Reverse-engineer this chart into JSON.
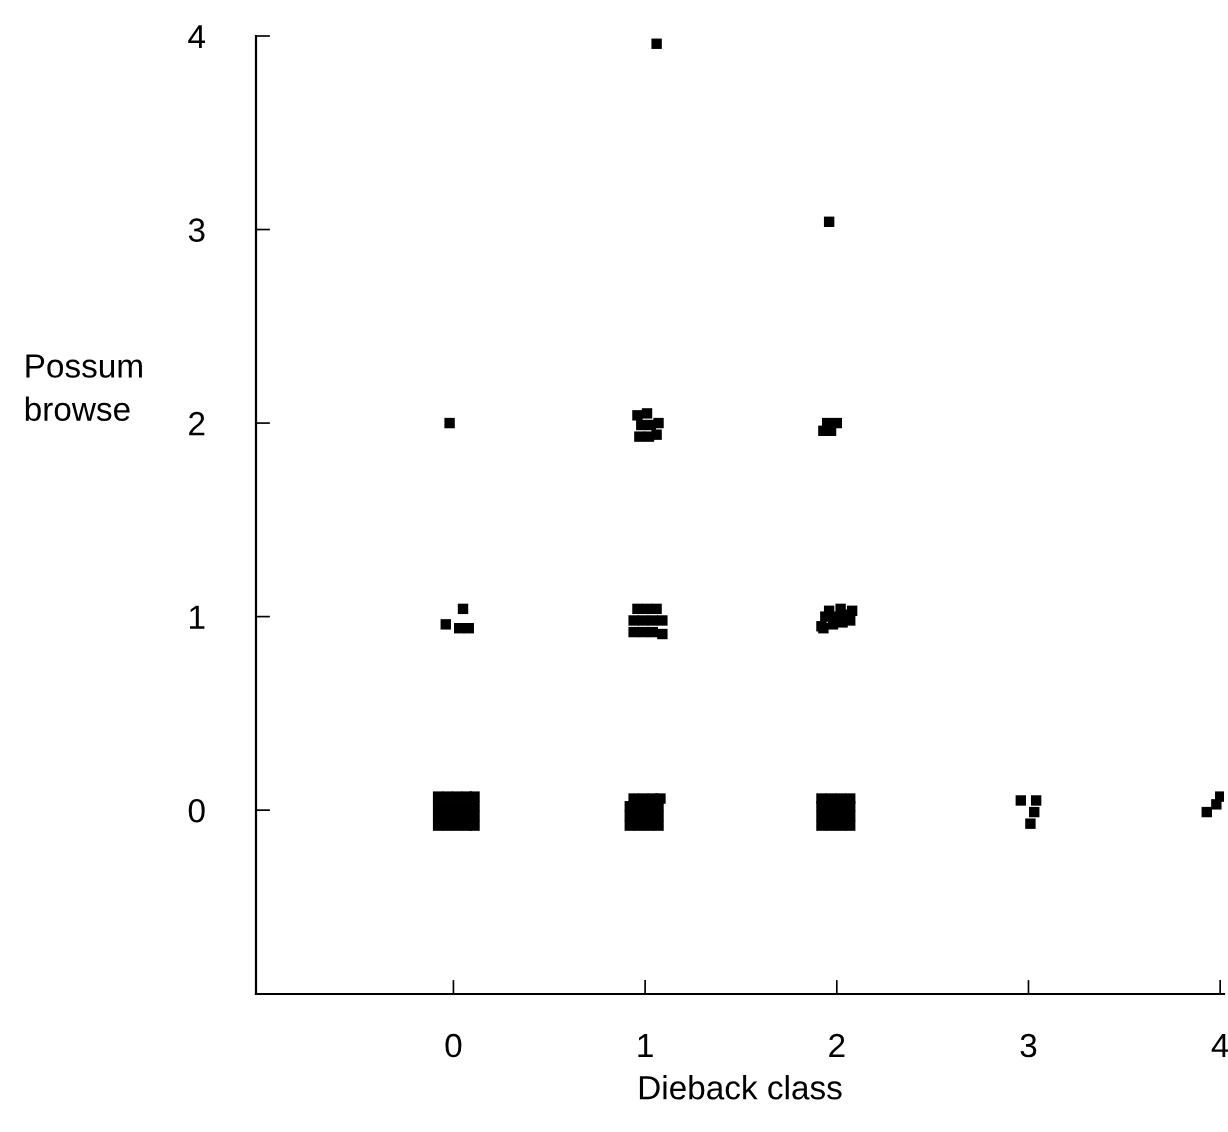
{
  "chart_data": {
    "type": "scatter",
    "xlabel": "Dieback class",
    "ylabel": "Possum browse",
    "xlim": [
      -1.03,
      4.02
    ],
    "ylim": [
      -0.95,
      4.0
    ],
    "xticks": [
      0,
      1,
      2,
      3,
      4
    ],
    "yticks": [
      0,
      1,
      2,
      3,
      4
    ],
    "grid": false,
    "marker": "square",
    "color": "#000000",
    "x": [
      -0.08,
      -0.03,
      0.02,
      0.07,
      0.11,
      -0.08,
      -0.03,
      0.02,
      0.07,
      0.11,
      -0.08,
      -0.03,
      0.02,
      0.07,
      0.11,
      -0.08,
      -0.03,
      0.02,
      0.07,
      0.11,
      0.92,
      0.97,
      1.02,
      1.07,
      0.92,
      0.97,
      1.02,
      1.07,
      0.92,
      0.97,
      1.02,
      1.07,
      0.94,
      0.99,
      1.04,
      1.08,
      1.92,
      1.97,
      2.02,
      2.07,
      1.92,
      1.97,
      2.02,
      2.07,
      1.92,
      1.97,
      2.02,
      2.07,
      1.92,
      1.97,
      2.02,
      2.07,
      2.96,
      3.04,
      3.03,
      3.01,
      3.93,
      3.98,
      4.0,
      0.05,
      -0.04,
      0.03,
      0.08,
      0.94,
      0.99,
      1.04,
      1.09,
      0.94,
      0.99,
      1.04,
      1.09,
      0.96,
      1.01,
      1.06,
      1.93,
      1.98,
      2.03,
      2.07,
      1.94,
      1.99,
      2.04,
      2.08,
      1.92,
      1.96,
      2.02,
      -0.02,
      0.97,
      1.02,
      1.06,
      0.98,
      1.03,
      1.07,
      0.96,
      1.01,
      1.93,
      1.97,
      2.0,
      1.95,
      1.96,
      1.06
    ],
    "values": [
      -0.08,
      -0.08,
      -0.08,
      -0.08,
      -0.08,
      -0.03,
      -0.03,
      -0.03,
      -0.03,
      -0.03,
      0.02,
      0.02,
      0.02,
      0.02,
      0.02,
      0.07,
      0.07,
      0.07,
      0.07,
      0.07,
      -0.08,
      -0.08,
      -0.08,
      -0.08,
      -0.03,
      -0.03,
      -0.03,
      -0.03,
      0.02,
      0.02,
      0.02,
      0.02,
      0.06,
      0.06,
      0.06,
      0.06,
      -0.08,
      -0.08,
      -0.08,
      -0.08,
      -0.03,
      -0.03,
      -0.03,
      -0.03,
      0.02,
      0.02,
      0.02,
      0.02,
      0.06,
      0.06,
      0.06,
      0.06,
      0.05,
      0.05,
      -0.01,
      -0.07,
      -0.01,
      0.03,
      0.07,
      1.04,
      0.96,
      0.94,
      0.94,
      0.92,
      0.92,
      0.92,
      0.91,
      0.98,
      0.98,
      0.98,
      0.98,
      1.04,
      1.04,
      1.04,
      0.94,
      0.96,
      0.97,
      0.98,
      1.0,
      1.0,
      1.01,
      1.03,
      0.95,
      1.03,
      1.04,
      2.0,
      1.93,
      1.93,
      1.94,
      1.99,
      1.99,
      2.0,
      2.04,
      2.05,
      1.96,
      1.96,
      2.0,
      2.0,
      3.04,
      3.96
    ]
  }
}
